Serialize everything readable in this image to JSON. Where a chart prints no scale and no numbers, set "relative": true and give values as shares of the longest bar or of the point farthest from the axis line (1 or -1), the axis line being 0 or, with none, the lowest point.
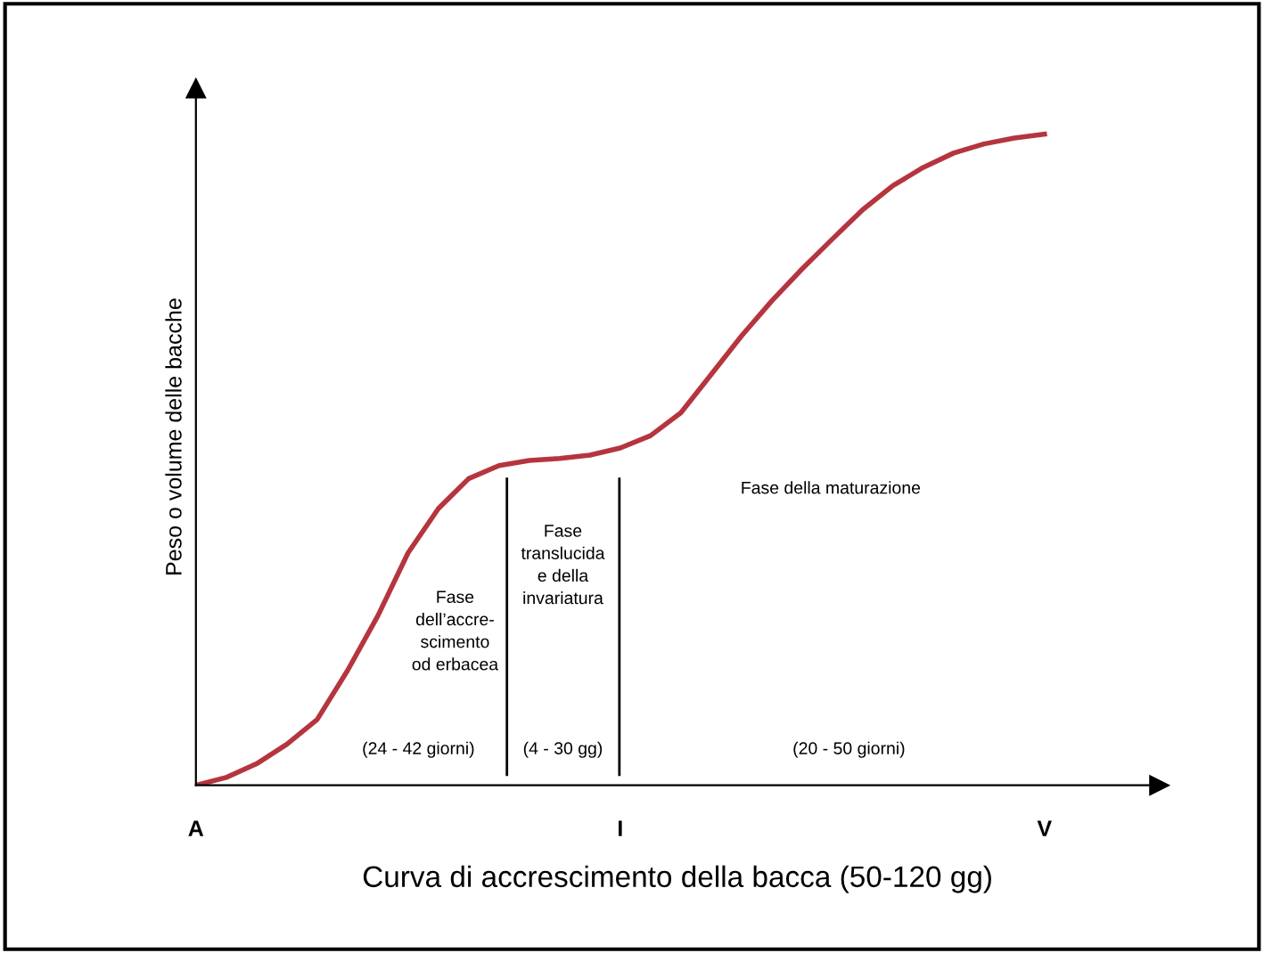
{
  "chart_data": {
    "type": "line",
    "relative": true,
    "xlabel": "Curva di accrescimento della bacca (50-120 gg)",
    "ylabel": "Peso o volume delle bacche",
    "categories": [
      "A",
      null,
      null,
      null,
      null,
      null,
      null,
      null,
      null,
      null,
      null,
      null,
      null,
      null,
      "I",
      null,
      null,
      null,
      null,
      null,
      null,
      null,
      null,
      null,
      null,
      null,
      null,
      null,
      "V"
    ],
    "series": [
      {
        "color": "#b5353f",
        "values": [
          0,
          0.012,
          0.033,
          0.063,
          0.101,
          0.176,
          0.26,
          0.357,
          0.425,
          0.471,
          0.491,
          0.499,
          0.502,
          0.507,
          0.518,
          0.537,
          0.572,
          0.631,
          0.69,
          0.744,
          0.793,
          0.839,
          0.884,
          0.921,
          0.949,
          0.971,
          0.985,
          0.994,
          1
        ]
      }
    ],
    "annotations": [
      "Fase\ndell’accre-\nscimento\nod erbacea",
      "Fase\ntranslucida\ne della\ninvariatura",
      "Fase della maturazione",
      "(24 - 42 giorni)",
      "(4 - 30 gg)",
      "(20 - 50 giorni)"
    ],
    "legend": false,
    "marker": "none",
    "line_style": "solid"
  }
}
